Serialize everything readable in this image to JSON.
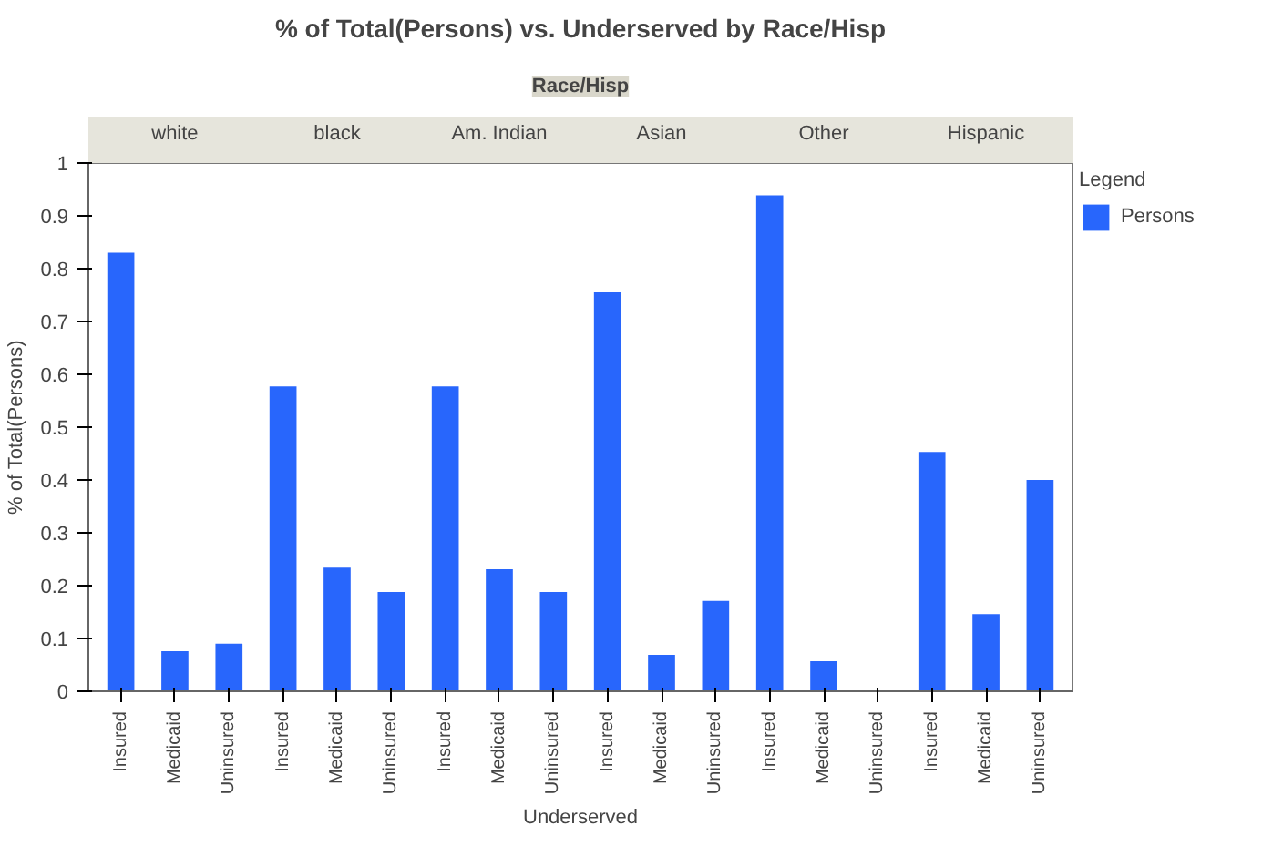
{
  "chart_data": {
    "type": "bar",
    "title": "% of Total(Persons) vs. Underserved by Race/Hisp",
    "annotations": [
      "Race/Hisp",
      "white",
      "black",
      "Am. Indian",
      "Asian",
      "Other",
      "Hispanic"
    ],
    "xlabel": "Underserved",
    "ylabel": "% of Total(Persons)",
    "legend_title": "Legend",
    "legend": "right",
    "grid": false,
    "categories": [
      "Insured",
      "Medicaid",
      "Uninsured",
      "Insured",
      "Medicaid",
      "Uninsured",
      "Insured",
      "Medicaid",
      "Uninsured",
      "Insured",
      "Medicaid",
      "Uninsured",
      "Insured",
      "Medicaid",
      "Uninsured",
      "Insured",
      "Medicaid",
      "Uninsured"
    ],
    "series": [
      {
        "name": "Persons",
        "color": "#2866fc",
        "values": [
          0.83,
          0.076,
          0.09,
          0.577,
          0.234,
          0.188,
          0.577,
          0.231,
          0.188,
          0.755,
          0.069,
          0.171,
          0.939,
          0.057,
          0,
          0.453,
          0.146,
          0.4
        ]
      }
    ],
    "ylim": [
      0,
      1
    ],
    "yticks": [
      0,
      0.1,
      0.2,
      0.3,
      0.4,
      0.5,
      0.6,
      0.7,
      0.8,
      0.9,
      1
    ]
  }
}
